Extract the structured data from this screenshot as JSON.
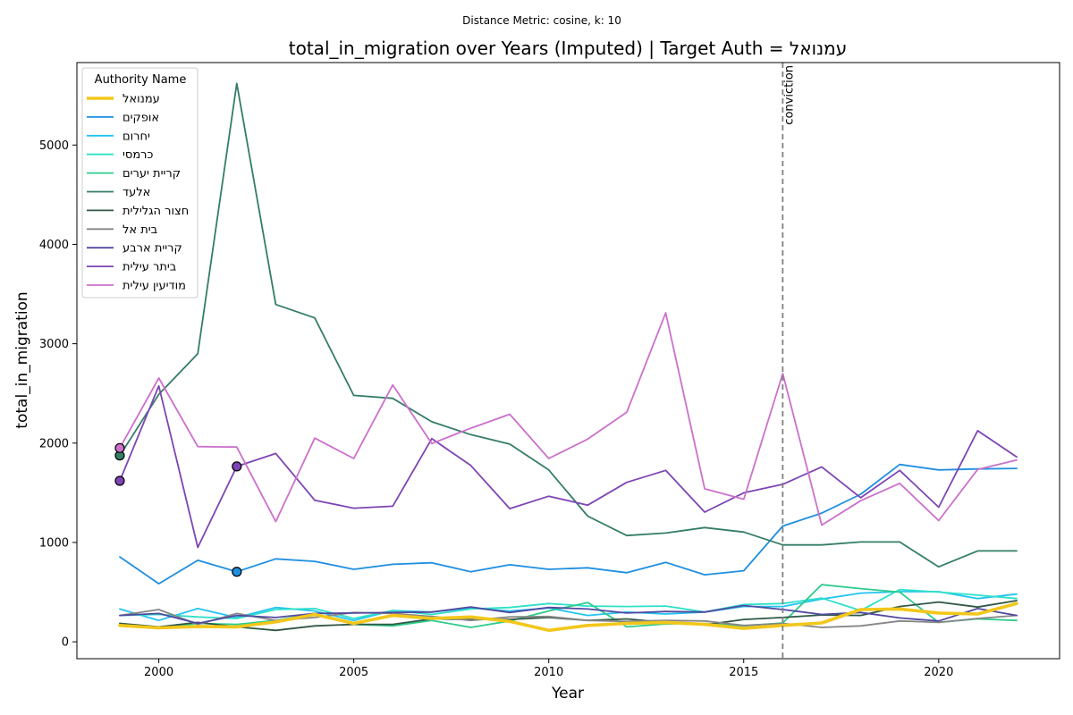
{
  "chart_data": {
    "type": "line",
    "suptitle": "Distance Metric: cosine, k: 10",
    "title": "total_in_migration over Years (Imputed) | Target Auth = עמנואל",
    "xlabel": "Year",
    "ylabel": "total_in_migration",
    "xlim": [
      1997.9,
      2023.1
    ],
    "ylim": [
      -170,
      5830
    ],
    "x_ticks": [
      2000,
      2005,
      2010,
      2015,
      2020
    ],
    "y_ticks": [
      0,
      1000,
      2000,
      3000,
      4000,
      5000
    ],
    "grid": false,
    "legend": {
      "title": "Authority Name",
      "placement": "top-left"
    },
    "x": [
      1999,
      2000,
      2001,
      2002,
      2003,
      2004,
      2005,
      2006,
      2007,
      2008,
      2009,
      2010,
      2011,
      2012,
      2013,
      2014,
      2015,
      2016,
      2017,
      2018,
      2019,
      2020,
      2021,
      2022
    ],
    "annotations": [
      {
        "x": 2016,
        "text": "conviction",
        "style": "dashed-vertical-line"
      }
    ],
    "series": [
      {
        "name": "עמנואל",
        "color": "#f2c71b",
        "width": 3.6,
        "values": [
          165,
          140,
          155,
          150,
          200,
          275,
          185,
          265,
          235,
          250,
          205,
          115,
          165,
          185,
          195,
          175,
          135,
          165,
          190,
          325,
          330,
          290,
          280,
          385
        ],
        "imputed_at": []
      },
      {
        "name": "אופקים",
        "color": "#1f8fe0",
        "width": 1.8,
        "values": [
          855,
          585,
          820,
          705,
          835,
          810,
          730,
          780,
          795,
          705,
          775,
          730,
          745,
          695,
          800,
          675,
          715,
          1165,
          1295,
          1485,
          1785,
          1730,
          1740,
          1745
        ],
        "imputed_at": [
          2002
        ]
      },
      {
        "name": "יחרום",
        "color": "#22c4f0",
        "width": 1.8,
        "values": [
          330,
          215,
          335,
          245,
          345,
          310,
          215,
          315,
          300,
          340,
          310,
          340,
          265,
          300,
          280,
          300,
          355,
          355,
          430,
          490,
          505,
          505,
          435,
          480
        ],
        "imputed_at": []
      },
      {
        "name": "כרמסי",
        "color": "#2de0c9",
        "width": 1.8,
        "values": [
          265,
          275,
          250,
          235,
          325,
          335,
          235,
          315,
          275,
          330,
          345,
          385,
          360,
          355,
          360,
          300,
          375,
          385,
          440,
          315,
          525,
          500,
          470,
          435
        ],
        "imputed_at": []
      },
      {
        "name": "קריית יערים",
        "color": "#2ecc8c",
        "width": 1.8,
        "values": [
          185,
          135,
          185,
          175,
          215,
          285,
          175,
          160,
          215,
          145,
          210,
          310,
          395,
          150,
          180,
          185,
          160,
          190,
          575,
          535,
          500,
          195,
          230,
          215
        ],
        "imputed_at": []
      },
      {
        "name": "אלעד",
        "color": "#347d68",
        "width": 1.8,
        "values": [
          1875,
          2490,
          2900,
          5620,
          3395,
          3260,
          2480,
          2450,
          2215,
          2085,
          1990,
          1730,
          1265,
          1070,
          1095,
          1150,
          1105,
          975,
          975,
          1005,
          1005,
          755,
          915,
          915
        ],
        "imputed_at": [
          1999
        ]
      },
      {
        "name": "חצור הגלילית",
        "color": "#305845",
        "width": 1.8,
        "values": [
          185,
          150,
          195,
          150,
          115,
          160,
          175,
          175,
          230,
          225,
          225,
          245,
          215,
          230,
          195,
          170,
          225,
          245,
          270,
          265,
          355,
          400,
          350,
          415
        ],
        "imputed_at": []
      },
      {
        "name": "בית אל",
        "color": "#868686",
        "width": 1.8,
        "values": [
          265,
          325,
          175,
          285,
          215,
          245,
          295,
          285,
          255,
          215,
          250,
          255,
          215,
          205,
          215,
          210,
          165,
          185,
          145,
          160,
          210,
          195,
          235,
          265
        ],
        "imputed_at": []
      },
      {
        "name": "קריית ארבע",
        "color": "#5149a0",
        "width": 1.8,
        "values": [
          265,
          285,
          185,
          265,
          245,
          285,
          290,
          295,
          300,
          350,
          295,
          345,
          330,
          290,
          305,
          300,
          365,
          325,
          275,
          295,
          240,
          210,
          335,
          265
        ],
        "imputed_at": []
      },
      {
        "name": "ביתר עילית",
        "color": "#7d45b4",
        "width": 1.8,
        "values": [
          1620,
          2575,
          950,
          1765,
          1895,
          1425,
          1345,
          1365,
          2045,
          1775,
          1340,
          1465,
          1375,
          1605,
          1725,
          1305,
          1500,
          1585,
          1760,
          1450,
          1725,
          1355,
          2125,
          1860
        ],
        "imputed_at": [
          1999,
          2002
        ]
      },
      {
        "name": "מודיעין עילית",
        "color": "#cc70cc",
        "width": 1.8,
        "values": [
          1950,
          2655,
          1965,
          1960,
          1210,
          2050,
          1845,
          2585,
          1995,
          2150,
          2290,
          1845,
          2040,
          2310,
          3310,
          1540,
          1435,
          2700,
          1175,
          1420,
          1595,
          1220,
          1735,
          1830
        ],
        "imputed_at": [
          1999
        ]
      }
    ]
  }
}
